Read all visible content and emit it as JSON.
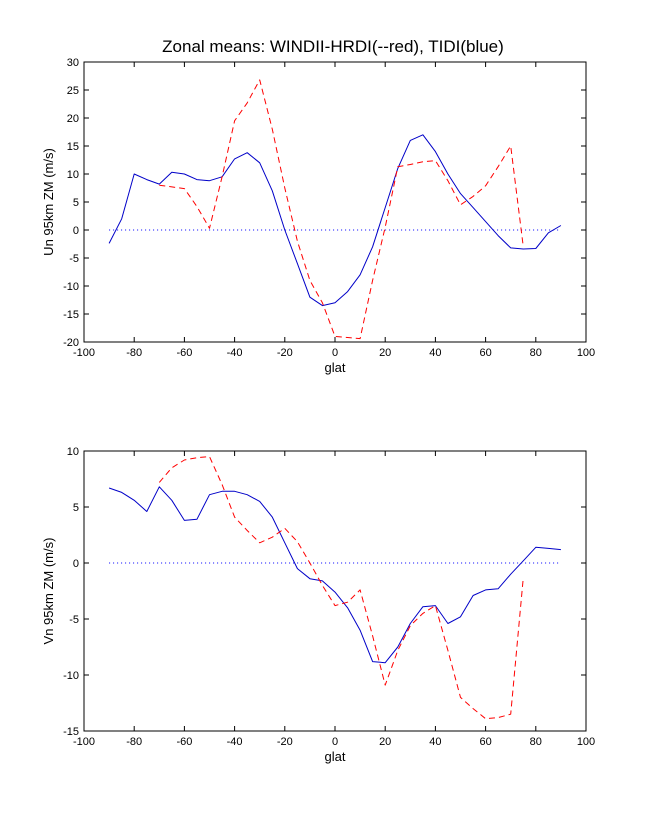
{
  "title": "Zonal means: WINDII-HRDI(--red), TIDI(blue)",
  "colors": {
    "red": "#ff0000",
    "blue": "#0000c8",
    "zero": "#0000ff",
    "axis": "#000000",
    "background": "#ffffff"
  },
  "chart_data": [
    {
      "type": "line",
      "xlabel": "glat",
      "ylabel": "Un 95km ZM (m/s)",
      "xlim": [
        -100,
        100
      ],
      "ylim": [
        -20,
        30
      ],
      "xticks": [
        -100,
        -80,
        -60,
        -40,
        -20,
        0,
        20,
        40,
        60,
        80,
        100
      ],
      "yticks": [
        -20,
        -15,
        -10,
        -5,
        0,
        5,
        10,
        15,
        20,
        25,
        30
      ],
      "grid": false,
      "series": [
        {
          "color": "blue",
          "style": "solid",
          "x": [
            -90,
            -85,
            -80,
            -75,
            -70,
            -65,
            -60,
            -55,
            -50,
            -45,
            -40,
            -35,
            -30,
            -25,
            -20,
            -15,
            -10,
            -5,
            0,
            5,
            10,
            15,
            20,
            25,
            30,
            35,
            40,
            45,
            50,
            55,
            60,
            65,
            70,
            75,
            80,
            85,
            90
          ],
          "y": [
            -2.4,
            2,
            10,
            9,
            8.2,
            10.3,
            10,
            9,
            8.8,
            9.5,
            12.7,
            13.8,
            12,
            7,
            0,
            -6,
            -12,
            -13.5,
            -13,
            -11,
            -8,
            -3,
            4,
            11,
            16,
            17,
            14,
            10,
            6.5,
            4,
            1.5,
            -1,
            -3.2,
            -3.4,
            -3.3,
            -0.5,
            0.8
          ]
        },
        {
          "color": "red",
          "style": "dashed",
          "x": [
            -70,
            -65,
            -60,
            -55,
            -50,
            -45,
            -40,
            -35,
            -30,
            -25,
            -20,
            -15,
            -10,
            -5,
            0,
            5,
            10,
            15,
            20,
            25,
            30,
            35,
            40,
            45,
            50,
            55,
            60,
            65,
            70,
            75
          ],
          "y": [
            8,
            7.7,
            7.4,
            4.2,
            0.3,
            9.5,
            19.5,
            22.7,
            26.8,
            18,
            7.5,
            -2,
            -9,
            -13,
            -19,
            -19.2,
            -19.4,
            -9,
            0.5,
            11.3,
            11.7,
            12.2,
            12.4,
            8.8,
            4.5,
            6,
            7.9,
            11.3,
            15,
            -3
          ]
        }
      ],
      "zero_line": {
        "y": 0,
        "x": [
          -90,
          90
        ],
        "style": "dotted",
        "color": "zero"
      }
    },
    {
      "type": "line",
      "xlabel": "glat",
      "ylabel": "Vn 95km ZM (m/s)",
      "xlim": [
        -100,
        100
      ],
      "ylim": [
        -15,
        10
      ],
      "xticks": [
        -100,
        -80,
        -60,
        -40,
        -20,
        0,
        20,
        40,
        60,
        80,
        100
      ],
      "yticks": [
        -15,
        -10,
        -5,
        0,
        5,
        10
      ],
      "grid": false,
      "series": [
        {
          "color": "blue",
          "style": "solid",
          "x": [
            -90,
            -85,
            -80,
            -75,
            -70,
            -65,
            -60,
            -55,
            -50,
            -45,
            -40,
            -35,
            -30,
            -25,
            -20,
            -15,
            -10,
            -5,
            0,
            5,
            10,
            15,
            20,
            25,
            30,
            35,
            40,
            45,
            50,
            55,
            60,
            65,
            70,
            75,
            80,
            85,
            90
          ],
          "y": [
            6.7,
            6.3,
            5.6,
            4.6,
            6.8,
            5.6,
            3.8,
            3.9,
            6.1,
            6.4,
            6.4,
            6.1,
            5.5,
            4.1,
            1.8,
            -0.5,
            -1.4,
            -1.6,
            -2.6,
            -4,
            -6,
            -8.8,
            -8.9,
            -7.5,
            -5.4,
            -3.9,
            -3.8,
            -5.4,
            -4.8,
            -2.9,
            -2.4,
            -2.3,
            -1,
            0.2,
            1.4,
            1.3,
            1.2
          ]
        },
        {
          "color": "red",
          "style": "dashed",
          "x": [
            -70,
            -65,
            -60,
            -55,
            -50,
            -45,
            -40,
            -35,
            -30,
            -25,
            -20,
            -15,
            -10,
            -5,
            0,
            5,
            10,
            15,
            20,
            25,
            30,
            35,
            40,
            45,
            50,
            55,
            60,
            65,
            70,
            75
          ],
          "y": [
            7.2,
            8.5,
            9.2,
            9.4,
            9.5,
            7,
            4.1,
            2.9,
            1.8,
            2.3,
            3.1,
            1.9,
            0,
            -2,
            -3.8,
            -3.5,
            -2.4,
            -6.5,
            -10.9,
            -7.8,
            -5.6,
            -4.5,
            -3.8,
            -7.8,
            -12,
            -13,
            -13.9,
            -13.8,
            -13.5,
            -1.3
          ]
        }
      ],
      "zero_line": {
        "y": 0,
        "x": [
          -90,
          90
        ],
        "style": "dotted",
        "color": "zero"
      }
    }
  ]
}
